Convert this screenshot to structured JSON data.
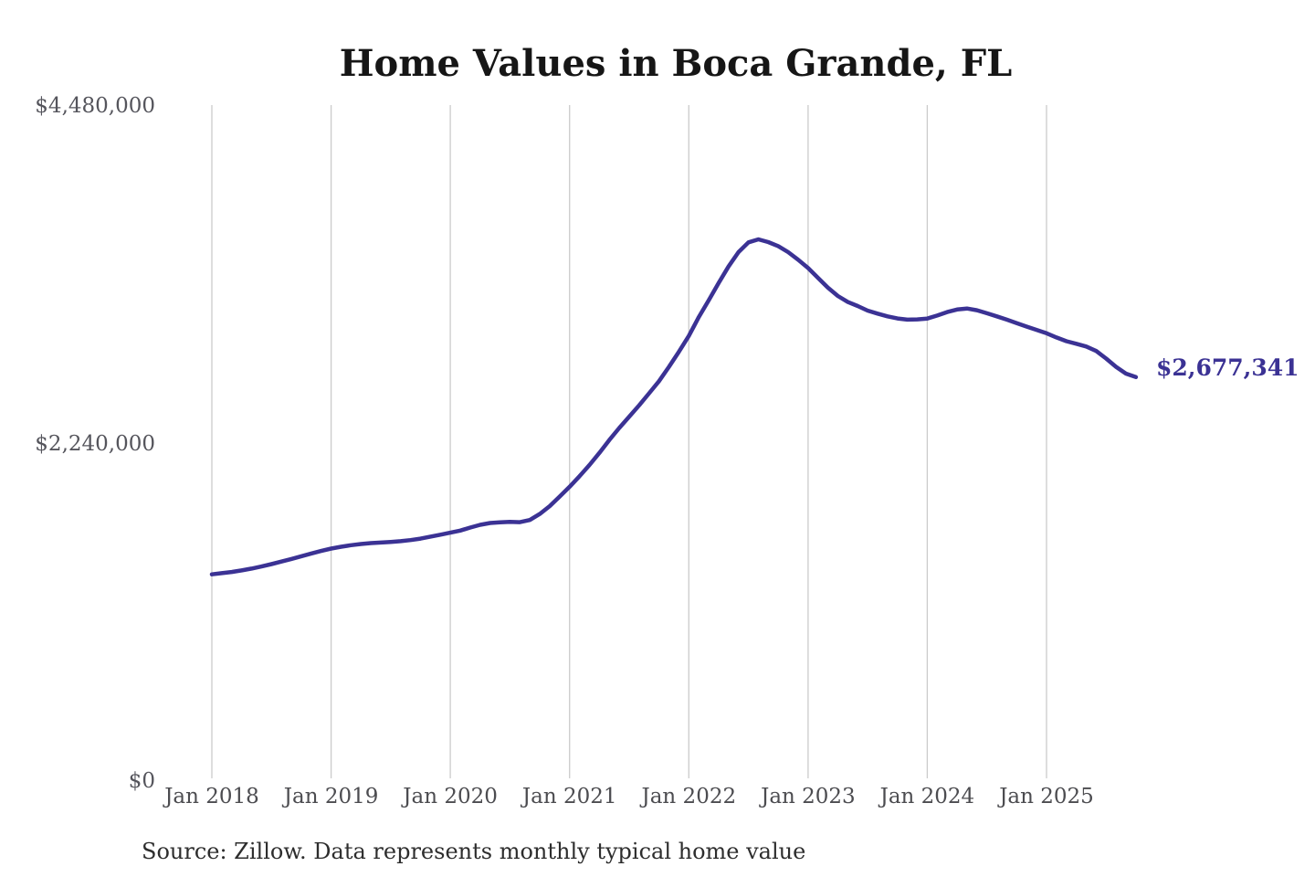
{
  "page": {
    "title": "Home Values in Boca Grande, FL",
    "source_note": "Source: Zillow. Data represents monthly typical home value"
  },
  "colors": {
    "line": "#3b3294",
    "annotation": "#3b3294",
    "grid": "#cbcbcb",
    "axis_label": "#55555c",
    "title": "#161616",
    "source": "#2d2d2d",
    "background": "#ffffff"
  },
  "chart_data": {
    "type": "line",
    "title": "Home Values in Boca Grande, FL",
    "unit": "USD",
    "frequency": "monthly",
    "x_start": "2018-01",
    "x_end": "2025-10",
    "x_tick_labels": [
      "Jan 2018",
      "Jan 2019",
      "Jan 2020",
      "Jan 2021",
      "Jan 2022",
      "Jan 2023",
      "Jan 2024",
      "Jan 2025"
    ],
    "y_tick_labels": [
      "$4,480,000",
      "$2,240,000",
      "$0"
    ],
    "y_ticks": [
      4480000,
      2240000,
      0
    ],
    "ylim": [
      0,
      4480000
    ],
    "grid": "vertical",
    "legend": "none",
    "annotation": {
      "text": "$2,677,341",
      "value": 2677341,
      "x": "2025-10"
    },
    "series": [
      {
        "name": "Typical home value",
        "values": [
          1370000,
          1378000,
          1386000,
          1396000,
          1408000,
          1422000,
          1438000,
          1455000,
          1472000,
          1490000,
          1508000,
          1525000,
          1541000,
          1553000,
          1563000,
          1571000,
          1577000,
          1581000,
          1585000,
          1590000,
          1597000,
          1607000,
          1620000,
          1633000,
          1646000,
          1660000,
          1680000,
          1698000,
          1710000,
          1715000,
          1718000,
          1716000,
          1730000,
          1770000,
          1822000,
          1885000,
          1950000,
          2020000,
          2095000,
          2175000,
          2260000,
          2340000,
          2415000,
          2490000,
          2570000,
          2650000,
          2745000,
          2845000,
          2950000,
          3075000,
          3185000,
          3300000,
          3410000,
          3505000,
          3570000,
          3590000,
          3572000,
          3545000,
          3505000,
          3455000,
          3400000,
          3335000,
          3270000,
          3215000,
          3175000,
          3148000,
          3118000,
          3098000,
          3080000,
          3066000,
          3058000,
          3060000,
          3065000,
          3085000,
          3108000,
          3125000,
          3132000,
          3120000,
          3100000,
          3080000,
          3058000,
          3035000,
          3012000,
          2990000,
          2968000,
          2940000,
          2915000,
          2898000,
          2880000,
          2850000,
          2800000,
          2745000,
          2700000,
          2677341
        ]
      }
    ]
  }
}
